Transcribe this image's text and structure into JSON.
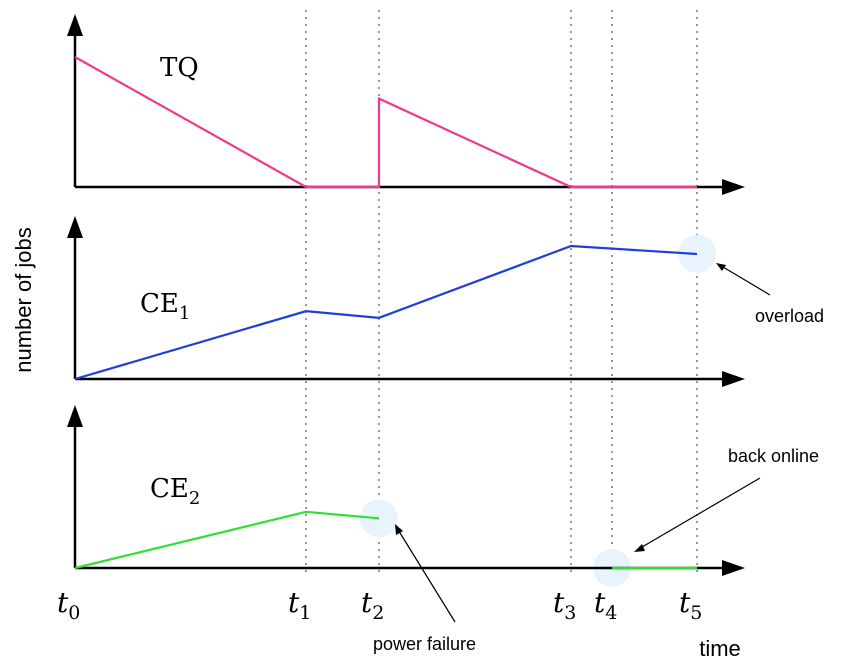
{
  "ylabel": "number of jobs",
  "xlabel": "time",
  "time_ticks": [
    {
      "label": "t",
      "sub": "0",
      "t": 0
    },
    {
      "label": "t",
      "sub": "1",
      "t": 1
    },
    {
      "label": "t",
      "sub": "2",
      "t": 2
    },
    {
      "label": "t",
      "sub": "3",
      "t": 3
    },
    {
      "label": "t",
      "sub": "4",
      "t": 4
    },
    {
      "label": "t",
      "sub": "5",
      "t": 5
    }
  ],
  "annotations": {
    "overload": "overload",
    "back_online": "back online",
    "power_failure": "power failure"
  },
  "colors": {
    "tq": "#f0398c",
    "ce1": "#1f3fd6",
    "ce2": "#2fe02f",
    "highlight": "#e9f3fb",
    "axis": "#000000"
  },
  "chart_data": [
    {
      "type": "line",
      "title": "TQ",
      "title_sub": "",
      "series": [
        {
          "values": [
            [
              0,
              1.0
            ],
            [
              1,
              0.0
            ],
            [
              2,
              0.0
            ],
            [
              2,
              0.68
            ],
            [
              3,
              0.0
            ],
            [
              5,
              0.0
            ]
          ]
        }
      ]
    },
    {
      "type": "line",
      "title": "CE",
      "title_sub": "1",
      "series": [
        {
          "values": [
            [
              0,
              0.0
            ],
            [
              1,
              0.51
            ],
            [
              2,
              0.46
            ],
            [
              3,
              1.0
            ],
            [
              5,
              0.94
            ]
          ]
        }
      ]
    },
    {
      "type": "line",
      "title": "CE",
      "title_sub": "2",
      "series": [
        {
          "values": [
            [
              0,
              0.0
            ],
            [
              1,
              0.52
            ],
            [
              2,
              0.46
            ]
          ]
        },
        {
          "values": [
            [
              4,
              0.0
            ],
            [
              5,
              0.0
            ]
          ]
        }
      ]
    }
  ]
}
